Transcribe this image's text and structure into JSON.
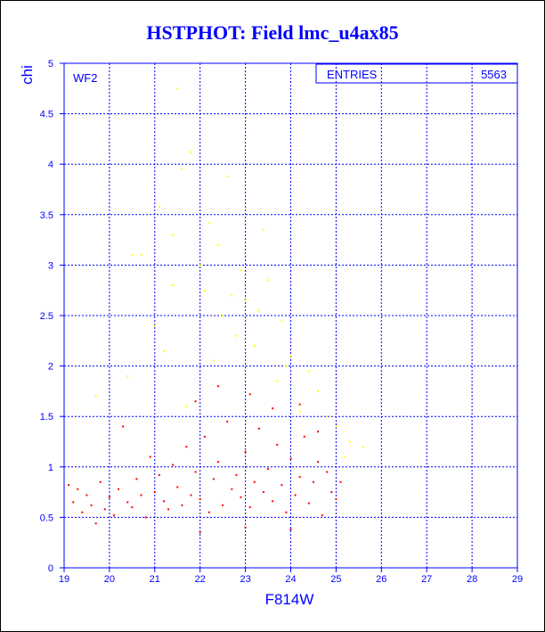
{
  "title": "HSTPHOT: Field lmc_u4ax85",
  "panel_label": "WF2",
  "stats_box": {
    "label": "ENTRIES",
    "value": "5563"
  },
  "colors": {
    "axis": "#0000ff",
    "grid": "#0000ff",
    "title": "#0000ff",
    "bright": "#ff0000",
    "faint": "#ffff00"
  },
  "chart_data": {
    "type": "scatter",
    "title": "HSTPHOT: Field lmc_u4ax85",
    "xlabel": "F814W",
    "ylabel": "chi",
    "xlim": [
      19,
      29
    ],
    "ylim": [
      0,
      5
    ],
    "xticks": [
      "19",
      "20",
      "21",
      "22",
      "23",
      "24",
      "25",
      "26",
      "27",
      "28",
      "29"
    ],
    "yticks": [
      "0",
      "0.5",
      "1",
      "1.5",
      "2",
      "2.5",
      "3",
      "3.5",
      "4",
      "4.5",
      "5"
    ],
    "grid": true,
    "entries": 5563,
    "series": [
      {
        "color": "#ff0000",
        "description_points": "dense population of stars",
        "points": [
          [
            19.1,
            0.82
          ],
          [
            19.2,
            0.65
          ],
          [
            19.3,
            0.78
          ],
          [
            19.4,
            0.55
          ],
          [
            19.5,
            0.72
          ],
          [
            19.6,
            0.62
          ],
          [
            19.7,
            0.44
          ],
          [
            19.8,
            0.85
          ],
          [
            19.9,
            0.58
          ],
          [
            20.0,
            0.7
          ],
          [
            20.1,
            0.52
          ],
          [
            20.2,
            0.78
          ],
          [
            20.3,
            1.4
          ],
          [
            20.4,
            0.65
          ],
          [
            20.5,
            0.6
          ],
          [
            20.6,
            0.88
          ],
          [
            20.7,
            0.72
          ],
          [
            20.8,
            0.5
          ],
          [
            20.9,
            1.1
          ],
          [
            21.0,
            0.75
          ],
          [
            21.1,
            0.92
          ],
          [
            21.2,
            0.66
          ],
          [
            21.3,
            0.58
          ],
          [
            21.4,
            1.02
          ],
          [
            21.5,
            0.8
          ],
          [
            21.6,
            0.62
          ],
          [
            21.7,
            1.2
          ],
          [
            21.8,
            0.72
          ],
          [
            21.9,
            0.95
          ],
          [
            22.0,
            0.68
          ],
          [
            22.1,
            1.3
          ],
          [
            22.2,
            0.55
          ],
          [
            22.3,
            0.88
          ],
          [
            22.4,
            1.05
          ],
          [
            22.5,
            0.62
          ],
          [
            22.6,
            1.45
          ],
          [
            22.7,
            0.78
          ],
          [
            22.8,
            0.92
          ],
          [
            22.9,
            0.7
          ],
          [
            23.0,
            1.15
          ],
          [
            23.1,
            0.6
          ],
          [
            23.2,
            0.85
          ],
          [
            23.3,
            1.38
          ],
          [
            23.4,
            0.75
          ],
          [
            23.5,
            0.98
          ],
          [
            23.6,
            0.66
          ],
          [
            23.7,
            1.22
          ],
          [
            23.8,
            0.82
          ],
          [
            23.9,
            0.55
          ],
          [
            24.0,
            1.08
          ],
          [
            24.1,
            0.72
          ],
          [
            24.2,
            0.9
          ],
          [
            24.3,
            1.3
          ],
          [
            24.4,
            0.64
          ],
          [
            24.5,
            0.85
          ],
          [
            24.6,
            1.05
          ],
          [
            24.7,
            0.52
          ],
          [
            24.8,
            0.95
          ],
          [
            24.9,
            0.75
          ],
          [
            25.0,
            0.68
          ],
          [
            25.1,
            0.85
          ],
          [
            21.9,
            1.65
          ],
          [
            22.4,
            1.8
          ],
          [
            23.1,
            1.72
          ],
          [
            23.6,
            1.58
          ],
          [
            24.2,
            1.62
          ],
          [
            24.6,
            1.35
          ],
          [
            22.0,
            0.35
          ],
          [
            23.0,
            0.4
          ],
          [
            24.0,
            0.38
          ]
        ]
      },
      {
        "color": "#ffff00",
        "description_points": "sparse high-chi stars",
        "points": [
          [
            21.5,
            4.75
          ],
          [
            21.8,
            4.12
          ],
          [
            21.6,
            3.95
          ],
          [
            22.6,
            3.88
          ],
          [
            21.1,
            3.58
          ],
          [
            22.2,
            3.42
          ],
          [
            22.4,
            3.2
          ],
          [
            20.5,
            3.1
          ],
          [
            20.7,
            3.1
          ],
          [
            21.4,
            3.3
          ],
          [
            22.0,
            3.0
          ],
          [
            22.9,
            2.95
          ],
          [
            23.4,
            3.35
          ],
          [
            23.5,
            2.85
          ],
          [
            21.4,
            2.8
          ],
          [
            22.1,
            2.75
          ],
          [
            23.0,
            2.65
          ],
          [
            23.3,
            2.55
          ],
          [
            22.5,
            2.5
          ],
          [
            23.8,
            2.45
          ],
          [
            22.8,
            2.3
          ],
          [
            23.2,
            2.2
          ],
          [
            24.0,
            2.1
          ],
          [
            21.2,
            2.15
          ],
          [
            22.3,
            2.05
          ],
          [
            24.4,
            1.95
          ],
          [
            20.4,
            1.9
          ],
          [
            23.7,
            1.85
          ],
          [
            24.6,
            1.75
          ],
          [
            19.7,
            1.7
          ],
          [
            21.7,
            1.6
          ],
          [
            24.2,
            1.55
          ],
          [
            25.0,
            1.4
          ],
          [
            25.3,
            1.25
          ],
          [
            25.6,
            1.2
          ],
          [
            25.2,
            1.1
          ],
          [
            21.0,
            2.4
          ],
          [
            22.7,
            2.7
          ],
          [
            23.9,
            2.0
          ],
          [
            24.8,
            1.5
          ]
        ]
      }
    ]
  }
}
